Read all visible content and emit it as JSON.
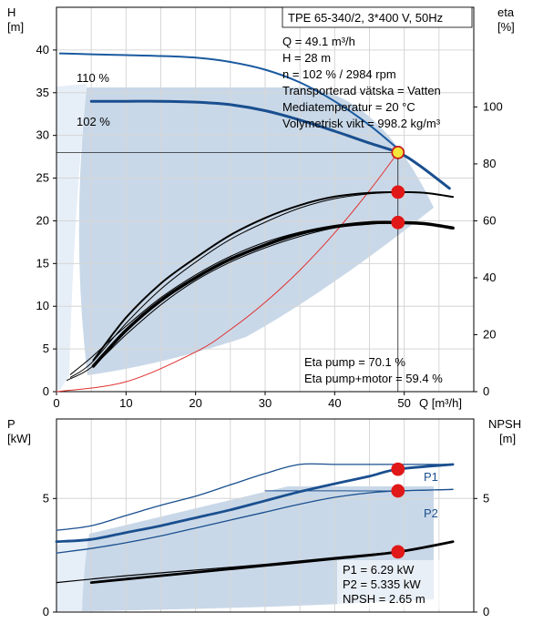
{
  "chart_data": [
    {
      "type": "line",
      "name": "pump-curve",
      "y_axis_label": "H",
      "y_axis_unit": "[m]",
      "y2_axis_label": "eta",
      "y2_axis_unit": "[%]",
      "x_axis_label": "Q [m³/h]",
      "xlim": [
        0,
        60
      ],
      "ylim": [
        0,
        45
      ],
      "y2lim": [
        0,
        135
      ],
      "x_ticks": [
        0,
        10,
        20,
        30,
        40,
        50
      ],
      "y_ticks": [
        0,
        5,
        10,
        15,
        20,
        25,
        30,
        35,
        40
      ],
      "y2_ticks": [
        0,
        20,
        40,
        60,
        80,
        100
      ],
      "grid": true,
      "title_box": "TPE 65-340/2, 3*400 V, 50Hz",
      "info_lines": [
        "Q = 49.1 m³/h",
        "H = 28 m",
        "n = 102 % / 2984 rpm",
        "Transporterad vätska = Vatten",
        "Mediatemperatur = 20 °C",
        "Volymetrisk vikt = 998.2 kg/m³"
      ],
      "efficiency_lines": [
        "Eta pump = 70.1 %",
        "Eta pump+motor = 59.4 %"
      ],
      "curve_labels": [
        "110 %",
        "102 %"
      ],
      "operating_point": {
        "q": 49.1,
        "h": 28
      },
      "series": [
        {
          "role": "h-110",
          "axis": "left",
          "color": "#1a5aa0",
          "width": 2,
          "x": [
            0.5,
            5,
            10,
            15,
            20,
            25,
            30,
            35,
            40,
            45,
            49
          ],
          "y": [
            39.6,
            39.5,
            39.4,
            39.3,
            39.1,
            38.6,
            37.7,
            36.2,
            34.0,
            31.2,
            28.5
          ]
        },
        {
          "role": "h-102",
          "axis": "left",
          "color": "#1a4f8f",
          "width": 3,
          "x": [
            5,
            10,
            15,
            20,
            25,
            30,
            35,
            40,
            45,
            49.1,
            52,
            56.5
          ],
          "y": [
            34.0,
            34.0,
            34.0,
            33.9,
            33.6,
            32.9,
            31.8,
            30.5,
            29.1,
            28.0,
            26.6,
            23.8
          ]
        },
        {
          "role": "system-curve",
          "axis": "left",
          "color": "#e03030",
          "width": 1,
          "x": [
            0,
            10,
            20,
            25,
            30,
            35,
            40,
            45,
            49.1
          ],
          "y": [
            0,
            1.16,
            4.65,
            7.26,
            10.46,
            14.23,
            18.59,
            23.53,
            28.0
          ]
        },
        {
          "role": "eta-pump-max",
          "axis": "right",
          "color": "#000000",
          "width": 2,
          "x": [
            5.3,
            10,
            15,
            20,
            25,
            30,
            35,
            40,
            45,
            49.1,
            53,
            57
          ],
          "y": [
            11,
            26,
            38,
            47,
            55,
            61,
            65.5,
            68.5,
            69.8,
            70.1,
            69.8,
            68.4
          ]
        },
        {
          "role": "eta-pump-max-b",
          "axis": "right",
          "color": "#000000",
          "width": 1,
          "x": [
            2,
            5,
            10,
            15,
            20,
            25,
            30,
            35,
            40,
            45,
            49.1
          ],
          "y": [
            5,
            10,
            24,
            36,
            45.5,
            53.5,
            59.5,
            64.5,
            67.8,
            69.5,
            70.0
          ]
        },
        {
          "role": "eta-system",
          "axis": "right",
          "color": "#000000",
          "width": 3.5,
          "x": [
            5.3,
            10,
            15,
            20,
            25,
            30,
            35,
            40,
            45,
            49.1,
            53,
            57
          ],
          "y": [
            9,
            21.5,
            32,
            40,
            46.5,
            51.5,
            55.5,
            58,
            59.3,
            59.4,
            59.0,
            57.5
          ]
        },
        {
          "role": "eta-system-b",
          "axis": "right",
          "color": "#000000",
          "width": 1,
          "x": [
            1.5,
            5,
            10,
            15,
            20,
            25,
            30,
            35,
            40,
            45,
            49.1
          ],
          "y": [
            4,
            8.5,
            20,
            30.5,
            39,
            45.5,
            50.5,
            54.5,
            57.5,
            58.8,
            59.3
          ]
        },
        {
          "role": "eta-system-c",
          "axis": "right",
          "color": "#000000",
          "width": 1,
          "x": [
            2,
            5,
            10,
            15,
            20,
            25,
            30,
            35,
            40,
            45,
            49.1
          ],
          "y": [
            6,
            12,
            23,
            33,
            41,
            47.5,
            52.5,
            56,
            58.3,
            59.4,
            59.5
          ]
        }
      ],
      "markers": [
        {
          "role": "op-h",
          "axis": "left",
          "x": 49.1,
          "y": 28,
          "color": "#f5e63a",
          "stroke": "#c81e1e"
        },
        {
          "role": "op-eta-pump",
          "axis": "right",
          "x": 49.1,
          "y": 70.1,
          "color": "#e01818",
          "stroke": "#e01818"
        },
        {
          "role": "op-eta-pm",
          "axis": "right",
          "x": 49.1,
          "y": 59.4,
          "color": "#e01818",
          "stroke": "#e01818"
        }
      ]
    },
    {
      "type": "line",
      "name": "power-npsh",
      "y_axis_label": "P",
      "y_axis_unit": "[kW]",
      "y2_axis_label": "NPSH",
      "y2_axis_unit": "[m]",
      "xlim": [
        0,
        60
      ],
      "ylim": [
        0,
        8.5
      ],
      "y2lim": [
        0,
        8.5
      ],
      "y_ticks": [
        0,
        5
      ],
      "y2_ticks": [
        0,
        5
      ],
      "grid": true,
      "value_lines": [
        "P1 = 6.29 kW",
        "P2 = 5.335 kW",
        "NPSH = 2.65 m"
      ],
      "series_names": [
        "P1",
        "P2"
      ],
      "series": [
        {
          "role": "p1-max",
          "axis": "left",
          "color": "#1a4f8f",
          "width": 1.3,
          "x": [
            0,
            5,
            10,
            15,
            20,
            25,
            30,
            35,
            40,
            45,
            50,
            57
          ],
          "y": [
            3.6,
            3.8,
            4.25,
            4.7,
            5.1,
            5.6,
            6.1,
            6.5,
            6.5,
            6.5,
            6.5,
            6.5
          ]
        },
        {
          "role": "p1",
          "axis": "left",
          "color": "#1a4f8f",
          "width": 2.8,
          "x": [
            0,
            5,
            10,
            15,
            20,
            25,
            30,
            35,
            40,
            45,
            49.1,
            57
          ],
          "y": [
            3.1,
            3.2,
            3.5,
            3.8,
            4.15,
            4.5,
            4.9,
            5.3,
            5.65,
            5.98,
            6.29,
            6.5
          ]
        },
        {
          "role": "p2-line",
          "axis": "left",
          "color": "#1a4f8f",
          "width": 1.3,
          "x": [
            0,
            5,
            10,
            15,
            20,
            25,
            30,
            35,
            40,
            45,
            49.1,
            57
          ],
          "y": [
            2.6,
            2.8,
            3.05,
            3.35,
            3.7,
            4.05,
            4.4,
            4.75,
            5.05,
            5.25,
            5.335,
            5.4
          ]
        },
        {
          "role": "p2-flat",
          "axis": "left",
          "color": "#1a4f8f",
          "width": 1,
          "x": [
            30,
            40,
            49.1,
            57
          ],
          "y": [
            5.335,
            5.335,
            5.335,
            5.4
          ]
        },
        {
          "role": "npsh-req",
          "axis": "right",
          "color": "#000000",
          "width": 1.2,
          "x": [
            0,
            5,
            10,
            20,
            30,
            40,
            49.1
          ],
          "y": [
            1.3,
            1.45,
            1.6,
            1.85,
            2.1,
            2.4,
            2.65
          ]
        },
        {
          "role": "npsh",
          "axis": "right",
          "color": "#000000",
          "width": 2.8,
          "x": [
            5,
            10,
            20,
            30,
            40,
            49.1,
            57
          ],
          "y": [
            1.3,
            1.45,
            1.75,
            2.05,
            2.35,
            2.65,
            3.1
          ]
        }
      ],
      "markers": [
        {
          "role": "op-p1",
          "axis": "left",
          "x": 49.1,
          "y": 6.29,
          "color": "#e01818",
          "stroke": "#e01818"
        },
        {
          "role": "op-p2",
          "axis": "left",
          "x": 49.1,
          "y": 5.335,
          "color": "#e01818",
          "stroke": "#e01818"
        },
        {
          "role": "op-npsh",
          "axis": "right",
          "x": 49.1,
          "y": 2.65,
          "color": "#e01818",
          "stroke": "#e01818"
        }
      ]
    }
  ],
  "colors": {
    "region_fill": "#c9d8e8",
    "region_light": "#e6eef7",
    "curve_blue": "#1a4f8f",
    "marker_red": "#e01818",
    "system_red": "#e03030"
  }
}
